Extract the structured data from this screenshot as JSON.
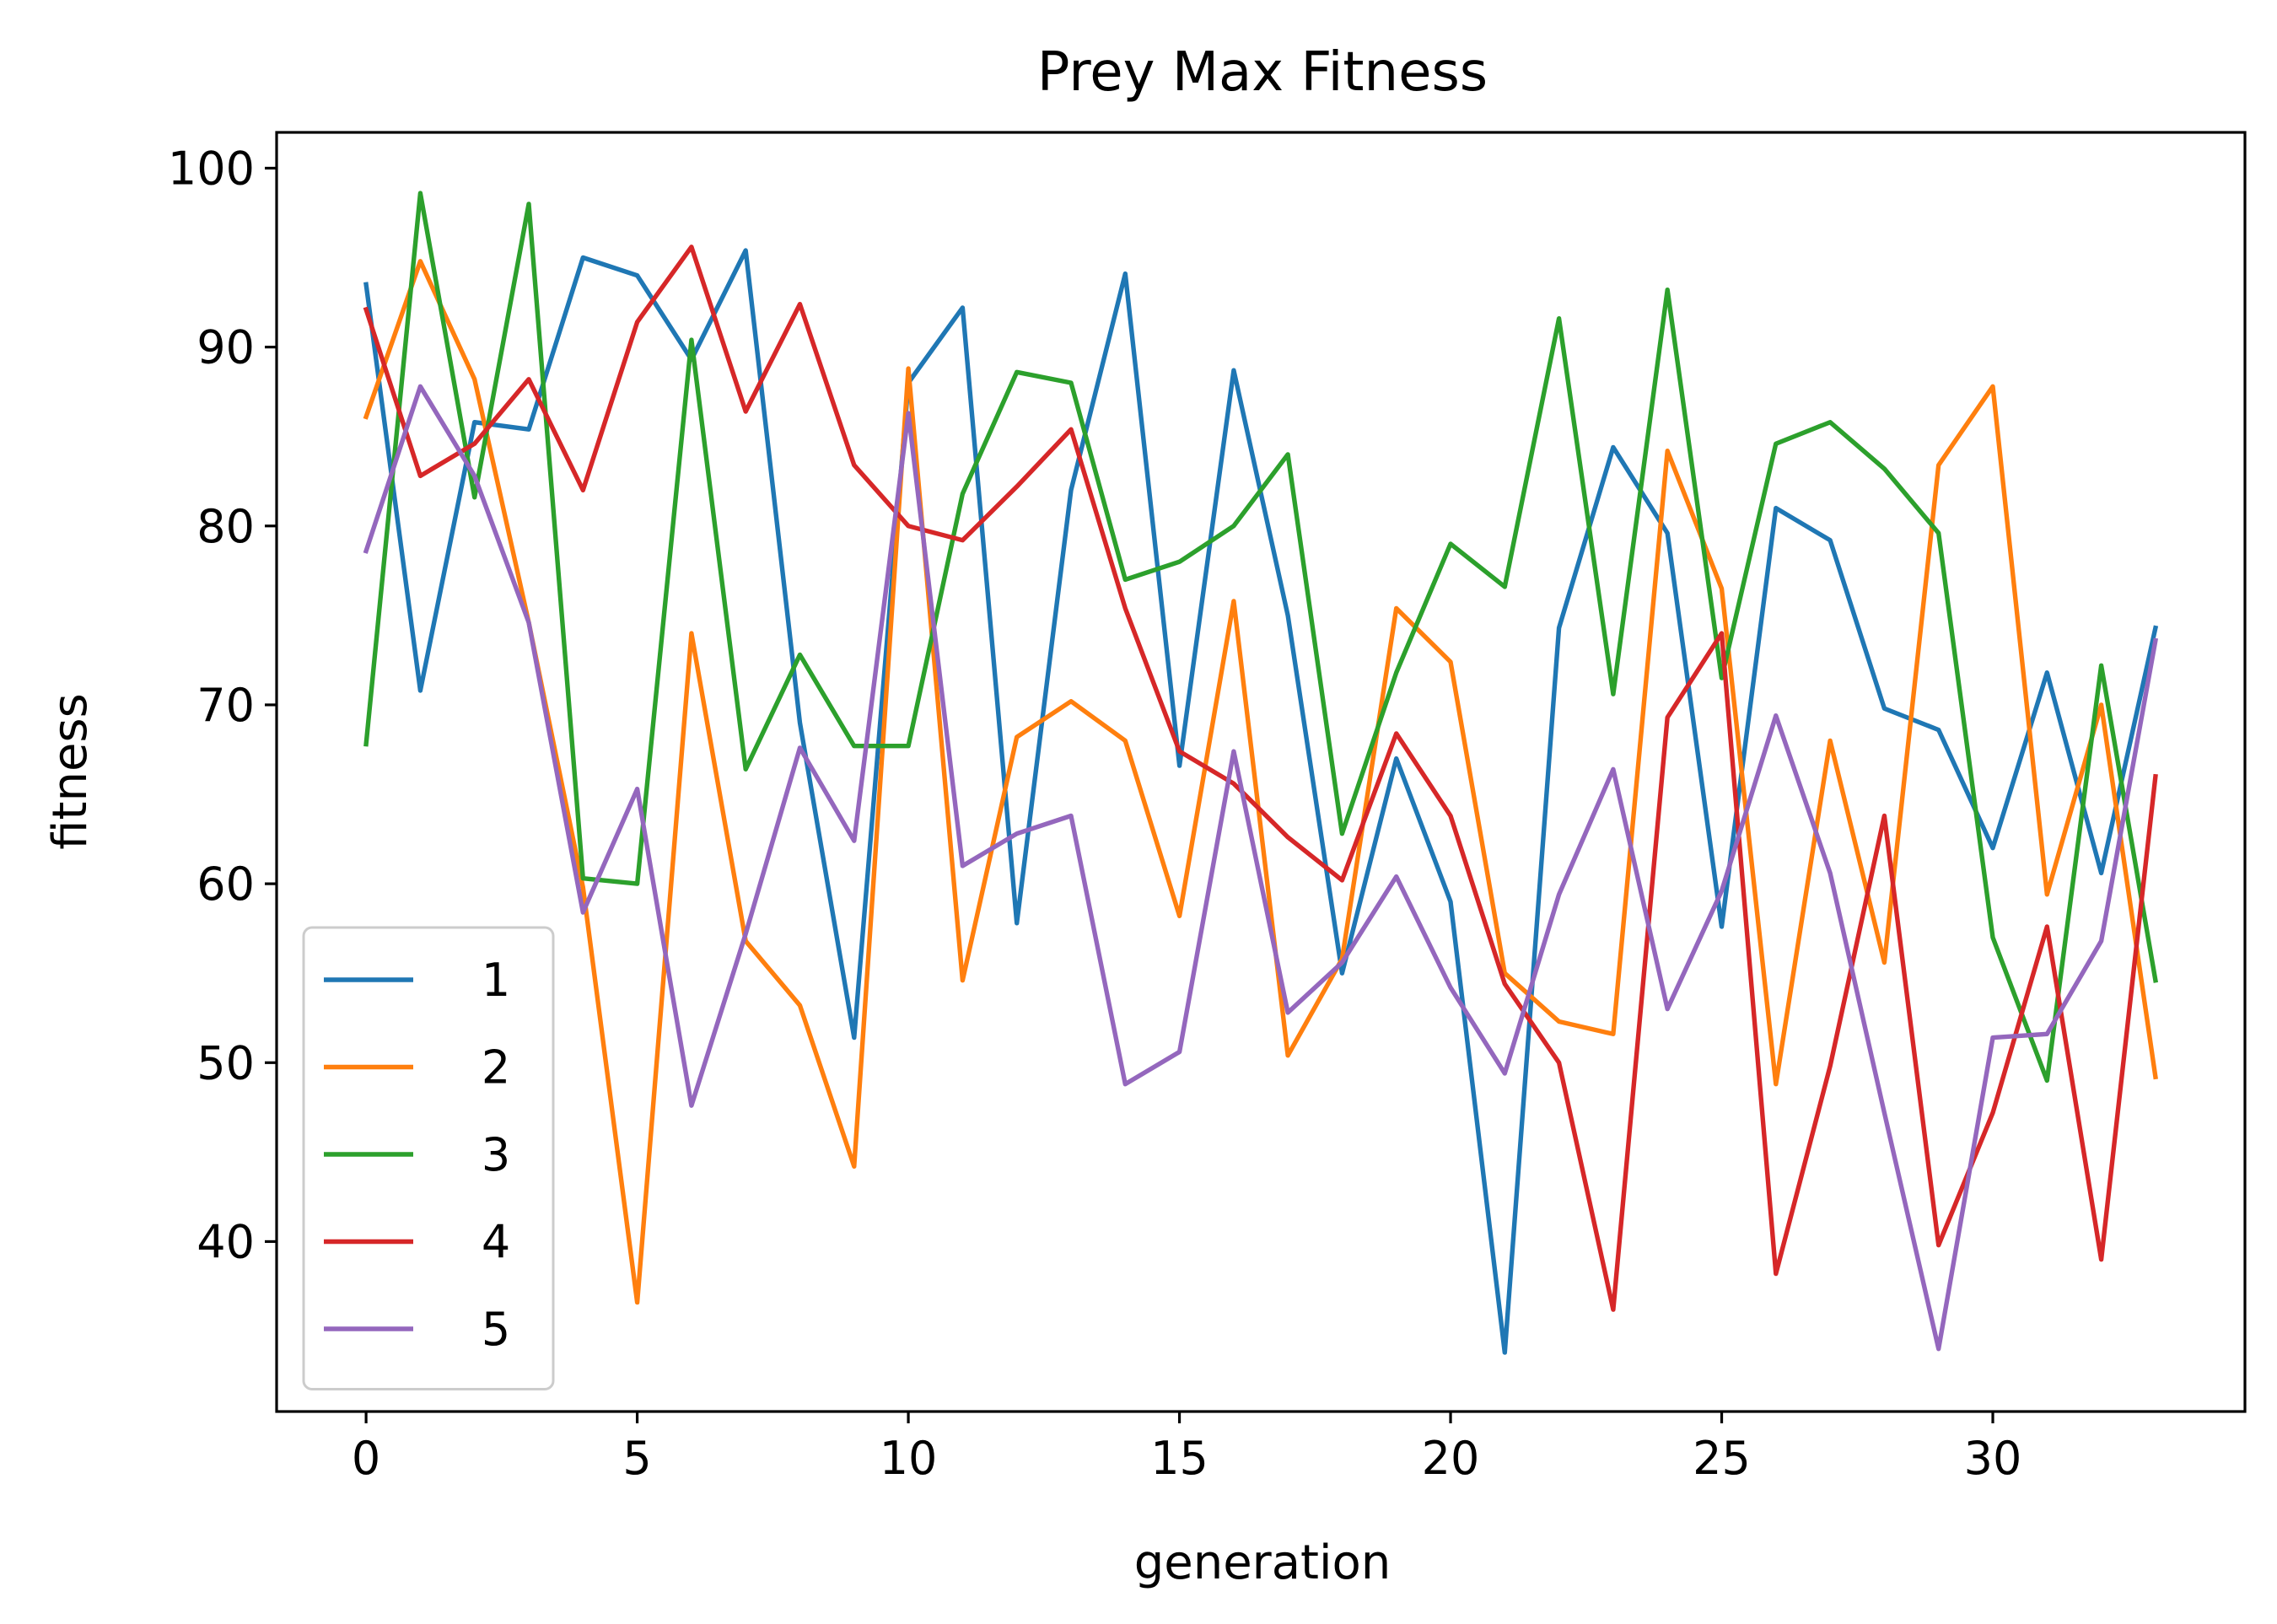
{
  "chart_data": {
    "type": "line",
    "title": "Prey Max Fitness",
    "xlabel": "generation",
    "ylabel": "fitness",
    "xlim": [
      -1.65,
      34.65
    ],
    "ylim": [
      30.5,
      102
    ],
    "xticks": [
      0,
      5,
      10,
      15,
      20,
      25,
      30
    ],
    "yticks": [
      40,
      50,
      60,
      70,
      80,
      90,
      100
    ],
    "grid": false,
    "legend_position": "lower-left",
    "x": [
      0,
      1,
      2,
      3,
      4,
      5,
      6,
      7,
      8,
      9,
      10,
      11,
      12,
      13,
      14,
      15,
      16,
      17,
      18,
      19,
      20,
      21,
      22,
      23,
      24,
      25,
      26,
      27,
      28,
      29,
      30,
      31,
      32,
      33
    ],
    "series": [
      {
        "name": "1",
        "color": "#1f77b4",
        "values": [
          93.5,
          70.8,
          85.8,
          85.4,
          95.0,
          94.0,
          89.3,
          95.4,
          69.0,
          51.4,
          88.0,
          92.2,
          57.8,
          82.0,
          94.1,
          66.6,
          88.7,
          75.0,
          55.0,
          67.0,
          59.0,
          33.8,
          74.3,
          84.4,
          79.6,
          57.6,
          81.0,
          79.2,
          69.8,
          68.6,
          62.0,
          71.8,
          60.6,
          74.3
        ]
      },
      {
        "name": "2",
        "color": "#ff7f0e",
        "values": [
          86.1,
          94.8,
          88.2,
          74.6,
          59.8,
          36.6,
          74.0,
          56.8,
          53.2,
          44.2,
          88.8,
          54.6,
          68.2,
          70.2,
          68.0,
          58.2,
          75.8,
          50.4,
          55.8,
          75.4,
          72.4,
          55.0,
          52.3,
          51.6,
          84.2,
          76.5,
          48.8,
          68.0,
          55.6,
          83.4,
          87.8,
          59.4,
          70.0,
          49.2
        ]
      },
      {
        "name": "3",
        "color": "#2ca02c",
        "values": [
          67.8,
          98.6,
          81.6,
          98.0,
          60.3,
          60.0,
          90.4,
          66.4,
          72.8,
          67.7,
          67.7,
          81.8,
          88.6,
          88.0,
          77.0,
          78.0,
          80.0,
          84.0,
          62.8,
          71.8,
          79.0,
          76.6,
          91.6,
          70.6,
          93.2,
          71.5,
          84.6,
          85.8,
          83.2,
          79.6,
          57.0,
          49.0,
          72.2,
          54.6
        ]
      },
      {
        "name": "4",
        "color": "#d62728",
        "values": [
          92.1,
          82.8,
          84.6,
          88.2,
          82.0,
          91.4,
          95.6,
          86.4,
          92.4,
          83.4,
          80.0,
          79.2,
          82.2,
          85.4,
          75.4,
          67.4,
          65.6,
          62.6,
          60.2,
          68.4,
          63.8,
          54.4,
          50.0,
          36.2,
          69.3,
          74.0,
          38.2,
          49.8,
          63.8,
          39.8,
          47.2,
          57.6,
          39.0,
          66.0
        ]
      },
      {
        "name": "5",
        "color": "#9467bd",
        "values": [
          78.6,
          87.8,
          82.8,
          74.6,
          58.4,
          65.3,
          47.6,
          57.2,
          67.6,
          62.4,
          86.3,
          61.0,
          62.8,
          63.8,
          48.8,
          50.6,
          67.4,
          52.8,
          55.6,
          60.4,
          54.2,
          49.4,
          59.4,
          66.4,
          53.0,
          59.6,
          69.4,
          60.6,
          47.2,
          34.0,
          51.4,
          51.6,
          56.8,
          73.6
        ]
      }
    ]
  }
}
